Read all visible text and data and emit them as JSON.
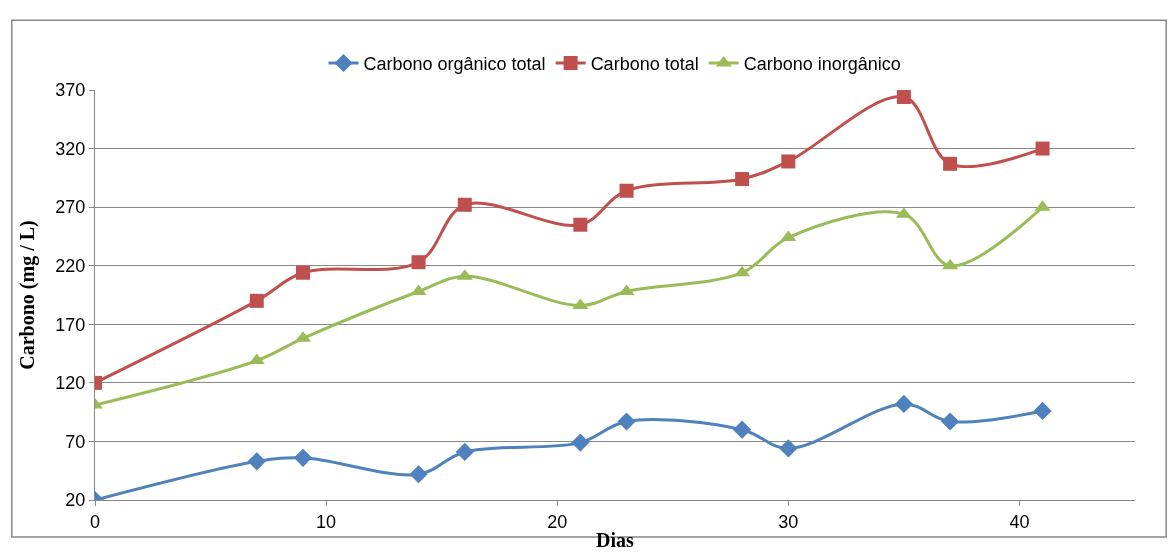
{
  "chart_data": {
    "type": "line",
    "xlabel": "Dias",
    "ylabel": "Carbono (mg / L)",
    "x": [
      0,
      7,
      9,
      14,
      16,
      21,
      23,
      28,
      30,
      35,
      37,
      41
    ],
    "series": [
      {
        "name": "Carbono orgânico total",
        "color": "#4f81bd",
        "marker": "diamond",
        "values": [
          20,
          53,
          56,
          42,
          61,
          69,
          87,
          80,
          64,
          102,
          87,
          96
        ]
      },
      {
        "name": "Carbono total",
        "color": "#c0504d",
        "marker": "square",
        "values": [
          120,
          190,
          214,
          223,
          272,
          255,
          284,
          294,
          309,
          364,
          307,
          320
        ]
      },
      {
        "name": "Carbono inorgânico",
        "color": "#9bbb59",
        "marker": "triangle",
        "values": [
          101,
          139,
          158,
          198,
          211,
          186,
          198,
          214,
          244,
          264,
          220,
          270
        ]
      }
    ],
    "xlim": [
      0,
      45
    ],
    "xticks": [
      0,
      10,
      20,
      30,
      40
    ],
    "ylim": [
      20,
      370
    ],
    "yticks": [
      20,
      70,
      120,
      170,
      220,
      270,
      320,
      370
    ],
    "grid": "y",
    "legend": "top"
  }
}
